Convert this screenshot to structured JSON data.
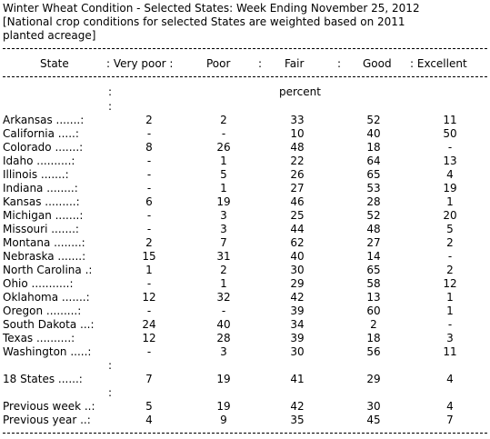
{
  "title": "Winter Wheat Condition - Selected States: Week Ending November 25, 2012",
  "note_line1": "[National crop conditions for selected States are weighted based on 2011",
  "note_line2": "planted acreage]",
  "header": {
    "state": "State",
    "very_poor": ": Very poor :",
    "poor": "Poor",
    "sep_poor": ":",
    "fair": "Fair",
    "sep_fair": ":",
    "good": "Good",
    "excellent": ": Excellent"
  },
  "units": "percent",
  "rows": [
    {
      "label": "Arkansas .......:",
      "values": [
        "2",
        "2",
        "33",
        "52",
        "11"
      ]
    },
    {
      "label": "California .....:",
      "values": [
        "-",
        "-",
        "10",
        "40",
        "50"
      ]
    },
    {
      "label": "Colorado .......:",
      "values": [
        "8",
        "26",
        "48",
        "18",
        "-"
      ]
    },
    {
      "label": "Idaho ..........:",
      "values": [
        "-",
        "1",
        "22",
        "64",
        "13"
      ]
    },
    {
      "label": "Illinois .......:",
      "values": [
        "-",
        "5",
        "26",
        "65",
        "4"
      ]
    },
    {
      "label": "Indiana ........:",
      "values": [
        "-",
        "1",
        "27",
        "53",
        "19"
      ]
    },
    {
      "label": "Kansas .........:",
      "values": [
        "6",
        "19",
        "46",
        "28",
        "1"
      ]
    },
    {
      "label": "Michigan .......:",
      "values": [
        "-",
        "3",
        "25",
        "52",
        "20"
      ]
    },
    {
      "label": "Missouri .......:",
      "values": [
        "-",
        "3",
        "44",
        "48",
        "5"
      ]
    },
    {
      "label": "Montana ........:",
      "values": [
        "2",
        "7",
        "62",
        "27",
        "2"
      ]
    },
    {
      "label": "Nebraska .......:",
      "values": [
        "15",
        "31",
        "40",
        "14",
        "-"
      ]
    },
    {
      "label": "North Carolina .:",
      "values": [
        "1",
        "2",
        "30",
        "65",
        "2"
      ]
    },
    {
      "label": "Ohio ...........:",
      "values": [
        "-",
        "1",
        "29",
        "58",
        "12"
      ]
    },
    {
      "label": "Oklahoma .......:",
      "values": [
        "12",
        "32",
        "42",
        "13",
        "1"
      ]
    },
    {
      "label": "Oregon .........:",
      "values": [
        "-",
        "-",
        "39",
        "60",
        "1"
      ]
    },
    {
      "label": "South Dakota ...:",
      "values": [
        "24",
        "40",
        "34",
        "2",
        "-"
      ]
    },
    {
      "label": "Texas ..........:",
      "values": [
        "12",
        "28",
        "39",
        "18",
        "3"
      ]
    },
    {
      "label": "Washington .....:",
      "values": [
        "-",
        "3",
        "30",
        "56",
        "11"
      ]
    }
  ],
  "total_row": {
    "label": "18 States ......:",
    "values": [
      "7",
      "19",
      "41",
      "29",
      "4"
    ]
  },
  "previous_rows": [
    {
      "label": "Previous week ..:",
      "values": [
        "5",
        "19",
        "42",
        "30",
        "4"
      ]
    },
    {
      "label": "Previous year ..:",
      "values": [
        "4",
        "9",
        "35",
        "45",
        "7"
      ]
    }
  ],
  "colon_mark": ":"
}
